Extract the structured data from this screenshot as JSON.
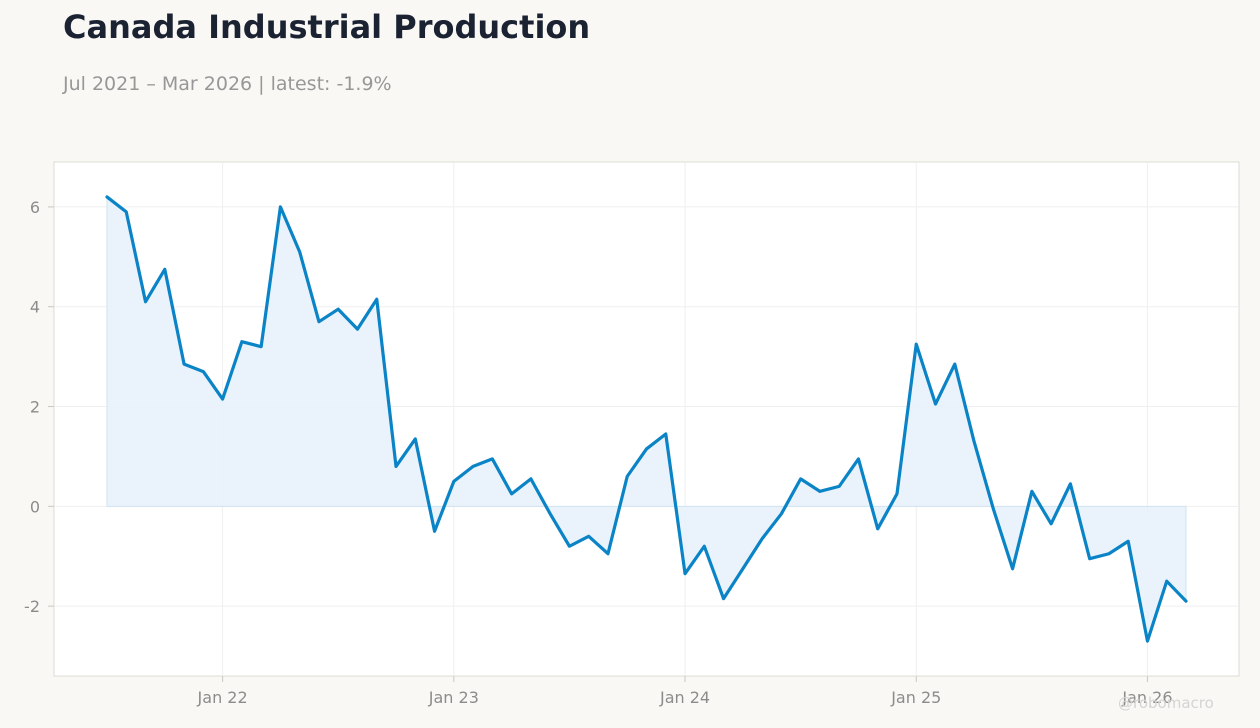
{
  "header": {
    "title": "Canada Industrial Production",
    "subtitle": "Jul 2021 – Mar 2026 | latest: -1.9%"
  },
  "watermark": "@robomacro",
  "colors": {
    "line": "#0a84c6",
    "fill": "#e6f1fa",
    "background": "#f9f8f5",
    "plot_background": "#ffffff"
  },
  "chart_data": {
    "type": "area",
    "title": "Canada Industrial Production",
    "xlabel": "",
    "ylabel": "",
    "x": [
      "2021-07",
      "2021-08",
      "2021-09",
      "2021-10",
      "2021-11",
      "2021-12",
      "2022-01",
      "2022-02",
      "2022-03",
      "2022-04",
      "2022-05",
      "2022-06",
      "2022-07",
      "2022-08",
      "2022-09",
      "2022-10",
      "2022-11",
      "2022-12",
      "2023-01",
      "2023-02",
      "2023-03",
      "2023-04",
      "2023-05",
      "2023-06",
      "2023-07",
      "2023-08",
      "2023-09",
      "2023-10",
      "2023-11",
      "2023-12",
      "2024-01",
      "2024-02",
      "2024-03",
      "2024-04",
      "2024-05",
      "2024-06",
      "2024-07",
      "2024-08",
      "2024-09",
      "2024-10",
      "2024-11",
      "2024-12",
      "2025-01",
      "2025-02",
      "2025-03",
      "2025-04",
      "2025-05",
      "2025-06",
      "2025-07",
      "2025-08",
      "2025-09",
      "2025-10",
      "2025-11",
      "2025-12",
      "2026-01",
      "2026-02",
      "2026-03"
    ],
    "values": [
      6.2,
      5.9,
      4.1,
      4.75,
      2.85,
      2.7,
      2.15,
      3.3,
      3.2,
      6.0,
      5.1,
      3.7,
      3.95,
      3.55,
      4.15,
      0.8,
      1.35,
      -0.5,
      0.5,
      0.8,
      0.95,
      0.25,
      0.55,
      -0.15,
      -0.8,
      -0.6,
      -0.95,
      0.6,
      1.15,
      1.45,
      -1.35,
      -0.8,
      -1.85,
      -1.25,
      -0.65,
      -0.15,
      0.55,
      0.3,
      0.4,
      0.95,
      -0.45,
      0.25,
      3.25,
      2.05,
      2.85,
      1.3,
      -0.05,
      -1.25,
      0.3,
      -0.35,
      0.45,
      -1.05,
      -0.95,
      -0.7,
      -2.7,
      -1.5,
      -1.9
    ],
    "ylim": [
      -3.4,
      6.9
    ],
    "yticks": [
      -2,
      0,
      2,
      4,
      6
    ],
    "ytick_labels": [
      "-2",
      "0",
      "2",
      "4",
      "6"
    ],
    "xticks": [
      "2022-01",
      "2023-01",
      "2024-01",
      "2025-01",
      "2026-01"
    ],
    "xtick_labels": [
      "Jan 22",
      "Jan 23",
      "Jan 24",
      "Jan 25",
      "Jan 26"
    ],
    "grid": true,
    "legend": "none"
  }
}
